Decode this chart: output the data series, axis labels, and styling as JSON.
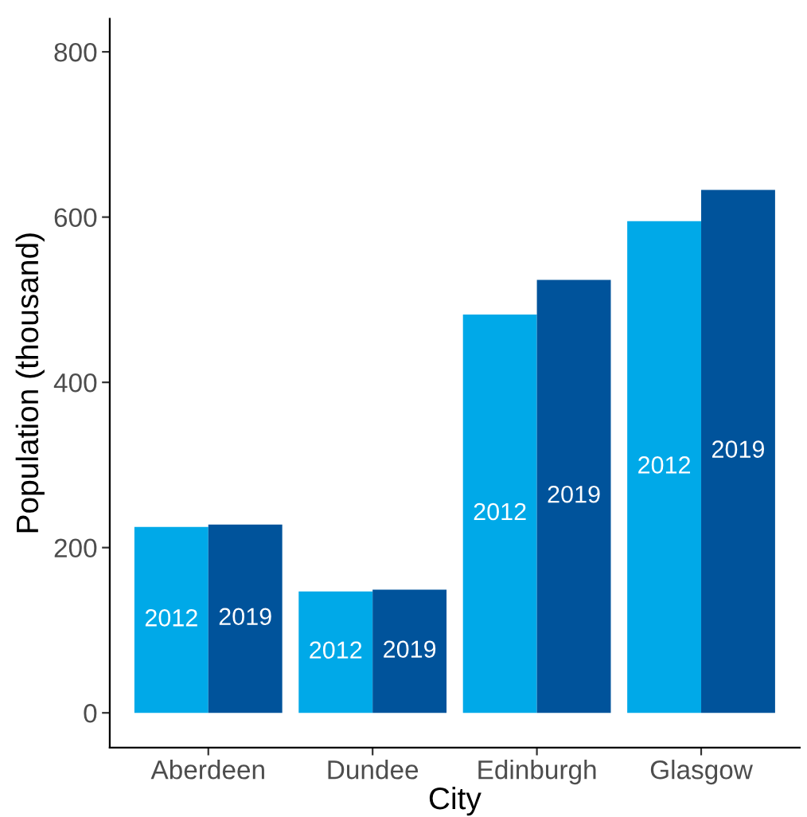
{
  "chart_data": {
    "type": "bar",
    "xlabel": "City",
    "ylabel": "Population (thousand)",
    "categories": [
      "Aberdeen",
      "Dundee",
      "Edinburgh",
      "Glasgow"
    ],
    "series": [
      {
        "name": "2012",
        "color": "#00a9e8",
        "values": [
          225,
          147,
          482,
          595
        ]
      },
      {
        "name": "2019",
        "color": "#00539b",
        "values": [
          228,
          149,
          524,
          633
        ]
      }
    ],
    "ylim": [
      -42,
      840
    ],
    "yticks": [
      0,
      200,
      400,
      600,
      800
    ],
    "grid": false,
    "legend": false
  }
}
